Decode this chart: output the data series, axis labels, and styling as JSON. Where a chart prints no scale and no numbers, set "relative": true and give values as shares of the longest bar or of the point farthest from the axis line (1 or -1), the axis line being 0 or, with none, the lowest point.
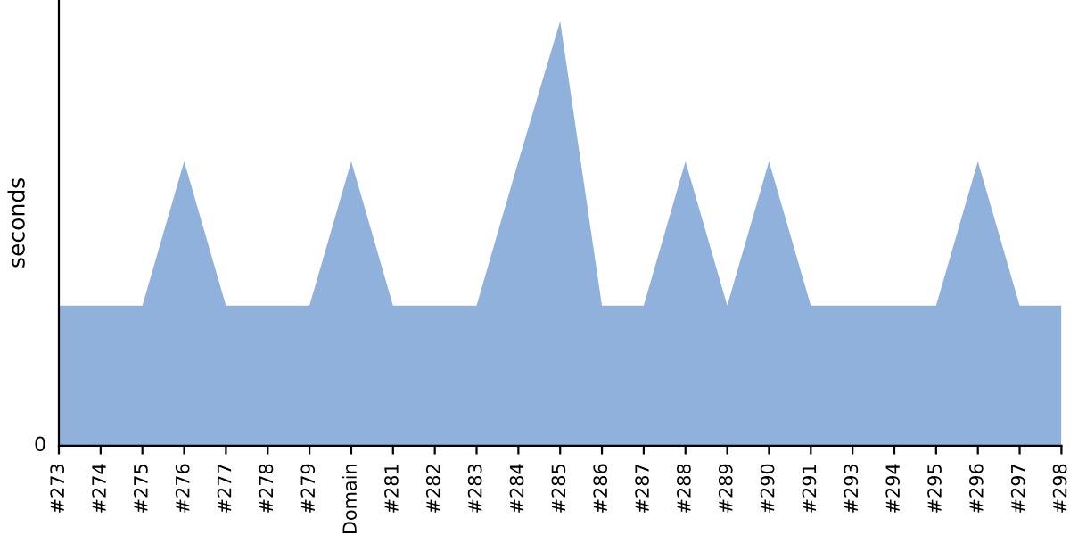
{
  "chart_data": {
    "type": "area",
    "ylabel": "seconds",
    "relative": true,
    "annotations": [
      "0"
    ],
    "categories": [
      "#273",
      "#274",
      "#275",
      "#276",
      "#277",
      "#278",
      "#279",
      "Domain",
      "#281",
      "#282",
      "#283",
      "#284",
      "#285",
      "#286",
      "#287",
      "#288",
      "#289",
      "#290",
      "#291",
      "#293",
      "#294",
      "#295",
      "#296",
      "#297",
      "#298"
    ],
    "series": [
      {
        "color": "#8fb1db",
        "values": [
          0.33,
          0.33,
          0.33,
          0.67,
          0.33,
          0.33,
          0.33,
          0.67,
          0.33,
          0.33,
          0.33,
          0.67,
          1,
          0.33,
          0.33,
          0.67,
          0.33,
          0.67,
          0.33,
          0.33,
          0.33,
          0.33,
          0.67,
          0.33,
          0.33
        ]
      }
    ],
    "grid": false,
    "legend": false
  }
}
